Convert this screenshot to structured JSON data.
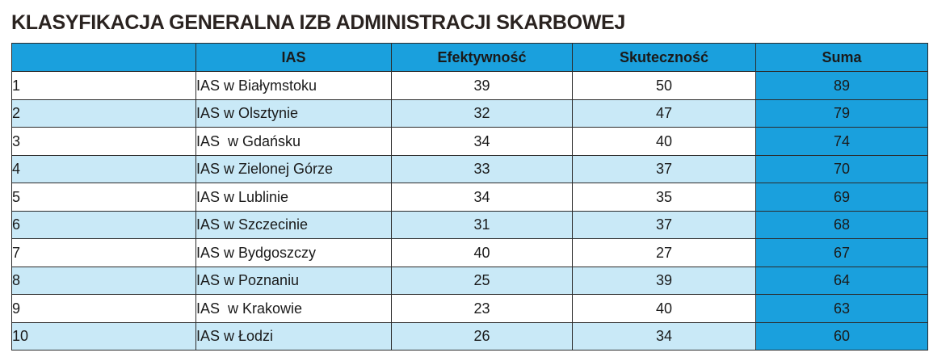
{
  "title": "KLASYFIKACJA GENERALNA IZB ADMINISTRACJI SKARBOWEJ",
  "colors": {
    "header_bg": "#1aa0dd",
    "stripe_bg": "#c9e9f7",
    "sum_bg": "#1aa0dd",
    "border": "#2b2b2b"
  },
  "table": {
    "headers": [
      "",
      "IAS",
      "Efektywność",
      "Skuteczność",
      "Suma"
    ],
    "rows": [
      {
        "rank": "1",
        "ias": "IAS w Białymstoku",
        "efektywnosc": "39",
        "skutecznosc": "50",
        "suma": "89"
      },
      {
        "rank": "2",
        "ias": "IAS w Olsztynie",
        "efektywnosc": "32",
        "skutecznosc": "47",
        "suma": "79"
      },
      {
        "rank": "3",
        "ias": "IAS  w Gdańsku",
        "efektywnosc": "34",
        "skutecznosc": "40",
        "suma": "74"
      },
      {
        "rank": "4",
        "ias": "IAS w Zielonej Górze",
        "efektywnosc": "33",
        "skutecznosc": "37",
        "suma": "70"
      },
      {
        "rank": "5",
        "ias": "IAS w Lublinie",
        "efektywnosc": "34",
        "skutecznosc": "35",
        "suma": "69"
      },
      {
        "rank": "6",
        "ias": "IAS w Szczecinie",
        "efektywnosc": "31",
        "skutecznosc": "37",
        "suma": "68"
      },
      {
        "rank": "7",
        "ias": "IAS w Bydgoszczy",
        "efektywnosc": "40",
        "skutecznosc": "27",
        "suma": "67"
      },
      {
        "rank": "8",
        "ias": "IAS w Poznaniu",
        "efektywnosc": "25",
        "skutecznosc": "39",
        "suma": "64"
      },
      {
        "rank": "9",
        "ias": "IAS  w Krakowie",
        "efektywnosc": "23",
        "skutecznosc": "40",
        "suma": "63"
      },
      {
        "rank": "10",
        "ias": "IAS w Łodzi",
        "efektywnosc": "26",
        "skutecznosc": "34",
        "suma": "60"
      }
    ]
  }
}
